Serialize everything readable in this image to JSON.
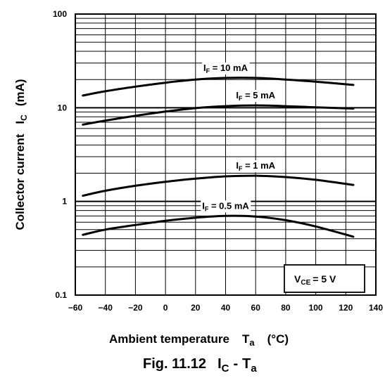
{
  "chart_data": {
    "type": "line",
    "xlabel": {
      "text": "Ambient temperature",
      "symbol": "T",
      "sub": "a",
      "unit": "(°C)"
    },
    "ylabel": {
      "text": "Collector current",
      "symbol": "I",
      "sub": "C",
      "unit": "(mA)"
    },
    "caption": {
      "prefix": "Fig. 11.12",
      "sym1": "I",
      "sub1": "C",
      "dash": "-",
      "sym2": "T",
      "sub2": "a"
    },
    "condition": {
      "symbol": "V",
      "sub": "CE",
      "value": "= 5 V"
    },
    "xlim": [
      -60,
      140
    ],
    "ylim": [
      0.1,
      100
    ],
    "yscale": "log",
    "grid": true,
    "x_ticks": [
      "−60",
      "−40",
      "−20",
      "0",
      "20",
      "40",
      "60",
      "80",
      "100",
      "120",
      "140"
    ],
    "x_tick_values": [
      -60,
      -40,
      -20,
      0,
      20,
      40,
      60,
      80,
      100,
      120,
      140
    ],
    "y_ticks": [
      "0.1",
      "1",
      "10",
      "100"
    ],
    "y_tick_values": [
      0.1,
      1,
      10,
      100
    ],
    "series": [
      {
        "name": "IF = 10 mA",
        "label_sym": "I",
        "label_sub": "F",
        "label_val": " = 10 mA",
        "x": [
          -55,
          -40,
          -20,
          0,
          20,
          40,
          60,
          80,
          100,
          125
        ],
        "y": [
          13.5,
          15,
          16.8,
          18.5,
          20,
          20.8,
          20.8,
          20,
          19,
          17.5
        ]
      },
      {
        "name": "IF = 5 mA",
        "label_sym": "I",
        "label_sub": "F",
        "label_val": " = 5 mA",
        "x": [
          -55,
          -40,
          -20,
          0,
          20,
          40,
          60,
          80,
          100,
          125
        ],
        "y": [
          6.6,
          7.3,
          8.2,
          9.1,
          9.9,
          10.4,
          10.6,
          10.4,
          10.1,
          9.8
        ]
      },
      {
        "name": "IF = 1 mA",
        "label_sym": "I",
        "label_sub": "F",
        "label_val": " = 1 mA",
        "x": [
          -55,
          -40,
          -20,
          0,
          20,
          40,
          60,
          80,
          100,
          125
        ],
        "y": [
          1.15,
          1.3,
          1.47,
          1.62,
          1.75,
          1.85,
          1.88,
          1.82,
          1.7,
          1.5
        ]
      },
      {
        "name": "IF = 0.5 mA",
        "label_sym": "I",
        "label_sub": "F",
        "label_val": " = 0.5 mA",
        "x": [
          -55,
          -40,
          -20,
          0,
          20,
          40,
          60,
          80,
          100,
          125
        ],
        "y": [
          0.44,
          0.5,
          0.56,
          0.62,
          0.67,
          0.7,
          0.69,
          0.63,
          0.54,
          0.42
        ]
      }
    ]
  }
}
